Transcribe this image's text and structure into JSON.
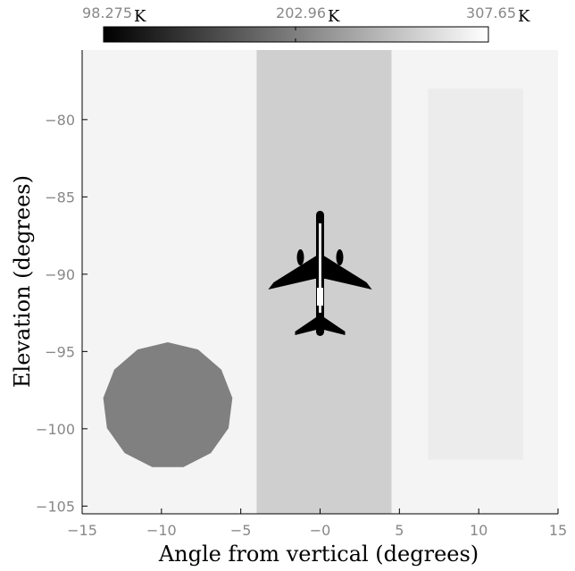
{
  "colorbar": {
    "min_value": "98.275",
    "mid_value": "202.96",
    "max_value": "307.65",
    "unit": "K",
    "gradient_start": "#000000",
    "gradient_end": "#ffffff"
  },
  "axes": {
    "xlabel": "Angle from vertical (degrees)",
    "ylabel": "Elevation (degrees)",
    "xlim": [
      -15,
      15
    ],
    "ylim": [
      -105.5,
      -75.5
    ],
    "x_tick_values": [
      -15,
      -10,
      -5,
      0,
      5,
      10,
      15
    ],
    "x_tick_labels": [
      "−15",
      "−10",
      "−5",
      "−0",
      "5",
      "10",
      "15"
    ],
    "y_tick_values": [
      -80,
      -85,
      -90,
      -95,
      -100,
      -105
    ],
    "y_tick_labels": [
      "−80",
      "−85",
      "−90",
      "−95",
      "−100",
      "−105"
    ]
  },
  "scene": {
    "background_color": "#f4f4f4",
    "strip": {
      "x_range": [
        -4,
        4.5
      ],
      "color": "#cfcfcf"
    },
    "rectangle": {
      "x_range": [
        6.8,
        12.8
      ],
      "y_range": [
        -102,
        -78
      ],
      "color": "#ececec"
    },
    "circle": {
      "center_x": -9.6,
      "center_y": -98.5,
      "radius": 4.1,
      "color": "#808080"
    },
    "aircraft": {
      "center_x": 0,
      "nose_y": -85.9,
      "tail_y": -94,
      "color": "#000000"
    }
  }
}
